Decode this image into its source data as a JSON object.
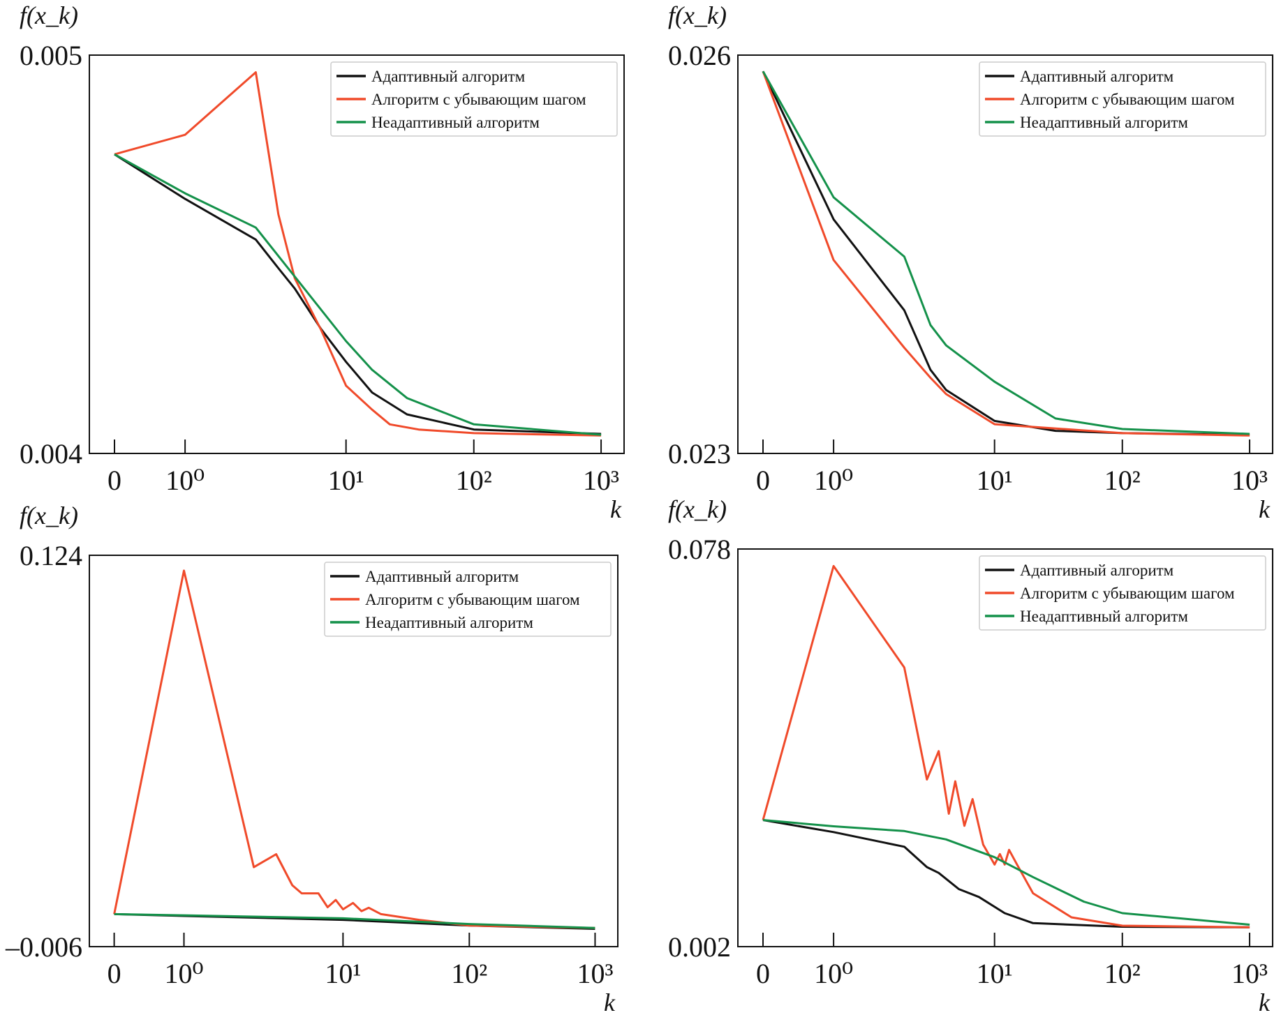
{
  "chart_data": [
    {
      "type": "line",
      "ylabel": "f(x_k)",
      "xlabel": "k",
      "ylim": [
        0.004,
        0.005
      ],
      "ytick_labels": [
        "0.005",
        "0.004"
      ],
      "xticks": [
        0,
        1,
        10,
        100,
        1000
      ],
      "xtick_labels": [
        "0",
        "10⁰",
        "10¹",
        "10²",
        "10³"
      ],
      "x_scale": "symlog",
      "legend_position": "top-right",
      "series": [
        {
          "name": "Адаптивный алгоритм",
          "color": "#111111",
          "x": [
            0,
            1,
            2.75,
            3.8,
            4.8,
            7,
            10,
            16,
            30,
            100,
            1000
          ],
          "y": [
            0.004751,
            0.004639,
            0.004537,
            0.004465,
            0.004414,
            0.004312,
            0.00423,
            0.004153,
            0.004098,
            0.00406,
            0.004049
          ]
        },
        {
          "name": "Алгоритм с убывающим шагом",
          "color": "#f04a2a",
          "x": [
            0,
            1,
            2.75,
            3.8,
            4.8,
            7,
            10,
            16,
            22,
            37,
            100,
            1000
          ],
          "y": [
            0.004751,
            0.0048,
            0.004957,
            0.0046,
            0.00444,
            0.00431,
            0.00417,
            0.00411,
            0.004073,
            0.00406,
            0.004051,
            0.004045
          ]
        },
        {
          "name": "Неадаптивный алгоритм",
          "color": "#14914a",
          "x": [
            0,
            1,
            2.75,
            5,
            10,
            16,
            30,
            100,
            1000
          ],
          "y": [
            0.004751,
            0.004653,
            0.004567,
            0.004435,
            0.004282,
            0.00421,
            0.004139,
            0.004073,
            0.004047
          ]
        }
      ]
    },
    {
      "type": "line",
      "ylabel": "f(x_k)",
      "xlabel": "k",
      "ylim": [
        0.023,
        0.026
      ],
      "ytick_labels": [
        "0.026",
        "0.023"
      ],
      "xticks": [
        0,
        1,
        10,
        100,
        1000
      ],
      "xtick_labels": [
        "0",
        "10⁰",
        "10¹",
        "10²",
        "10³"
      ],
      "x_scale": "symlog",
      "legend_position": "top-right",
      "series": [
        {
          "name": "Адаптивный алгоритм",
          "color": "#111111",
          "x": [
            0,
            1,
            2.75,
            4,
            5,
            10,
            30,
            100,
            1000
          ],
          "y": [
            0.025878,
            0.024763,
            0.024078,
            0.02363,
            0.023478,
            0.023245,
            0.02317,
            0.023153,
            0.02314
          ]
        },
        {
          "name": "Алгоритм с убывающим шагом",
          "color": "#f04a2a",
          "x": [
            0,
            1,
            2.75,
            4,
            5,
            10,
            100,
            1000
          ],
          "y": [
            0.025878,
            0.024457,
            0.023796,
            0.02357,
            0.023447,
            0.02322,
            0.023153,
            0.023135
          ]
        },
        {
          "name": "Неадаптивный алгоритм",
          "color": "#14914a",
          "x": [
            0,
            1,
            2.75,
            4,
            5,
            10,
            30,
            100,
            1000
          ],
          "y": [
            0.025878,
            0.024929,
            0.024482,
            0.023967,
            0.023814,
            0.02354,
            0.023263,
            0.023184,
            0.023147
          ]
        }
      ]
    },
    {
      "type": "line",
      "ylabel": "f(x_k)",
      "xlabel": "k",
      "ylim": [
        -0.006,
        0.124
      ],
      "ytick_labels": [
        "0.124",
        "–0.006"
      ],
      "xticks": [
        0,
        1,
        10,
        100,
        1000
      ],
      "xtick_labels": [
        "0",
        "10⁰",
        "10¹",
        "10²",
        "10³"
      ],
      "x_scale": "symlog",
      "legend_position": "top-right",
      "series": [
        {
          "name": "Адаптивный алгоритм",
          "color": "#111111",
          "x": [
            0,
            1,
            10,
            100,
            1000
          ],
          "y": [
            0.0048,
            0.0042,
            0.0029,
            0.001,
            -0.0001
          ]
        },
        {
          "name": "Алгоритм с убывающим шагом",
          "color": "#f04a2a",
          "x": [
            0,
            1,
            2.75,
            3.8,
            4.8,
            5.5,
            7,
            8,
            9,
            10,
            12,
            14,
            16,
            20,
            40,
            100,
            1000
          ],
          "y": [
            0.0048,
            0.1189,
            0.0204,
            0.0247,
            0.0144,
            0.0117,
            0.0117,
            0.0071,
            0.0095,
            0.0064,
            0.0085,
            0.0058,
            0.0069,
            0.0048,
            0.0029,
            0.001,
            0.0002
          ]
        },
        {
          "name": "Неадаптивный алгоритм",
          "color": "#14914a",
          "x": [
            0,
            1,
            10,
            100,
            1000
          ],
          "y": [
            0.0048,
            0.0044,
            0.0034,
            0.0015,
            0.0002
          ]
        }
      ]
    },
    {
      "type": "line",
      "ylabel": "f(x_k)",
      "xlabel": "k",
      "ylim": [
        0.002,
        0.078
      ],
      "ytick_labels": [
        "0.078",
        "0.002"
      ],
      "xticks": [
        0,
        1,
        10,
        100,
        1000
      ],
      "xtick_labels": [
        "0",
        "10⁰",
        "10¹",
        "10²",
        "10³"
      ],
      "x_scale": "symlog",
      "legend_position": "top-right",
      "series": [
        {
          "name": "Адаптивный алгоритм",
          "color": "#111111",
          "x": [
            0,
            1,
            2.75,
            3.8,
            4.5,
            6,
            8,
            12,
            20,
            100,
            1000
          ],
          "y": [
            0.0262,
            0.0239,
            0.0211,
            0.0172,
            0.0161,
            0.013,
            0.0115,
            0.0084,
            0.0065,
            0.0058,
            0.0057
          ]
        },
        {
          "name": "Алгоритм с убывающим шагом",
          "color": "#f04a2a",
          "x": [
            0,
            1,
            2.75,
            3.8,
            4.5,
            5.2,
            5.7,
            6.5,
            7.3,
            8.5,
            10,
            11,
            12,
            13,
            15,
            20,
            40,
            100,
            1000
          ],
          "y": [
            0.0262,
            0.07474,
            0.05535,
            0.03395,
            0.03938,
            0.0274,
            0.0336,
            0.0251,
            0.0302,
            0.0215,
            0.0177,
            0.0197,
            0.0177,
            0.0205,
            0.0177,
            0.0122,
            0.0076,
            0.006,
            0.0057
          ]
        },
        {
          "name": "Неадаптивный алгоритм",
          "color": "#14914a",
          "x": [
            0,
            1,
            2.75,
            5,
            10,
            20,
            50,
            100,
            1000
          ],
          "y": [
            0.0262,
            0.025,
            0.0241,
            0.0225,
            0.0191,
            0.0153,
            0.0106,
            0.0084,
            0.0062
          ]
        }
      ]
    }
  ]
}
